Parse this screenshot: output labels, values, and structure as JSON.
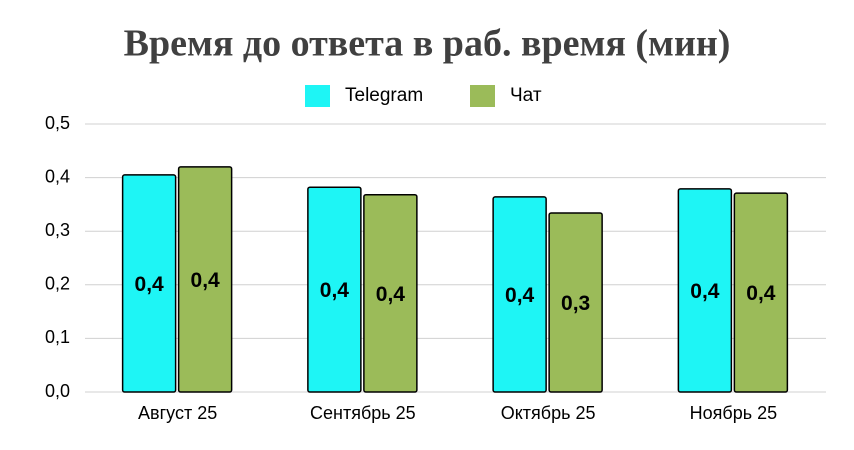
{
  "chart_data": {
    "type": "bar",
    "title": "Время до ответа в раб. время (мин)",
    "categories": [
      "Август 25",
      "Сентябрь 25",
      "Октябрь 25",
      "Ноябрь 25"
    ],
    "series": [
      {
        "name": "Telegram",
        "color": "#1ef5f5",
        "values": [
          0.405,
          0.382,
          0.364,
          0.379
        ],
        "value_labels": [
          "0,4",
          "0,4",
          "0,4",
          "0,4"
        ]
      },
      {
        "name": "Чат",
        "color": "#9bbb59",
        "values": [
          0.42,
          0.368,
          0.334,
          0.371
        ],
        "value_labels": [
          "0,4",
          "0,4",
          "0,3",
          "0,4"
        ]
      }
    ],
    "ylim": [
      0,
      0.5
    ],
    "yticks": [
      {
        "value": 0,
        "label": "0,0"
      },
      {
        "value": 0.1,
        "label": "0,1"
      },
      {
        "value": 0.2,
        "label": "0,2"
      },
      {
        "value": 0.3,
        "label": "0,3"
      },
      {
        "value": 0.4,
        "label": "0,4"
      },
      {
        "value": 0.5,
        "label": "0,5"
      }
    ],
    "grid": true,
    "legend": "top"
  }
}
